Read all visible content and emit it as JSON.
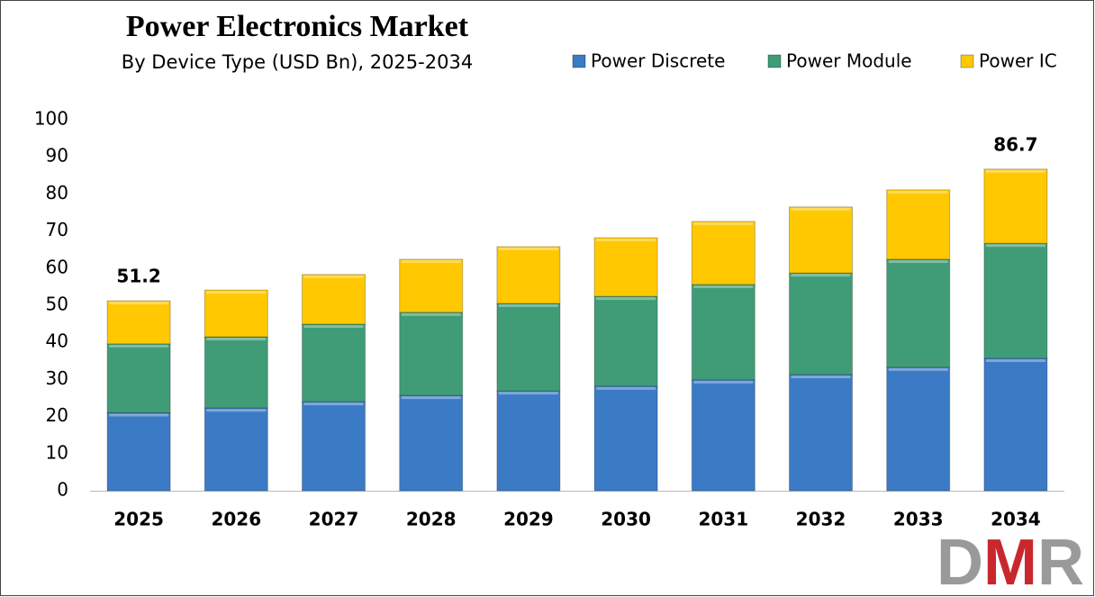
{
  "chart_data": {
    "type": "stacked-bar",
    "title": "Power Electronics Market",
    "subtitle": "By Device Type (USD Bn), 2025-2034",
    "categories": [
      "2025",
      "2026",
      "2027",
      "2028",
      "2029",
      "2030",
      "2031",
      "2032",
      "2033",
      "2034"
    ],
    "series": [
      {
        "name": "Power Discrete",
        "color": "#3b7bc6",
        "values": [
          21.0,
          22.3,
          24.0,
          25.7,
          26.9,
          28.2,
          29.9,
          31.3,
          33.3,
          35.7
        ]
      },
      {
        "name": "Power Module",
        "color": "#3f9c76",
        "values": [
          18.6,
          19.2,
          20.9,
          22.4,
          23.6,
          24.2,
          25.7,
          27.4,
          29.1,
          31.0
        ]
      },
      {
        "name": "Power IC",
        "color": "#ffc800",
        "values": [
          11.6,
          12.6,
          13.4,
          14.3,
          15.3,
          15.8,
          17.0,
          17.8,
          18.7,
          20.0
        ]
      }
    ],
    "total_labels": [
      51.2,
      null,
      null,
      null,
      null,
      null,
      null,
      null,
      null,
      86.7
    ],
    "ylim": [
      0,
      100
    ],
    "yticks": [
      0,
      10,
      20,
      30,
      40,
      50,
      60,
      70,
      80,
      90,
      100
    ],
    "legend": "top-right",
    "logo": "DMR"
  }
}
